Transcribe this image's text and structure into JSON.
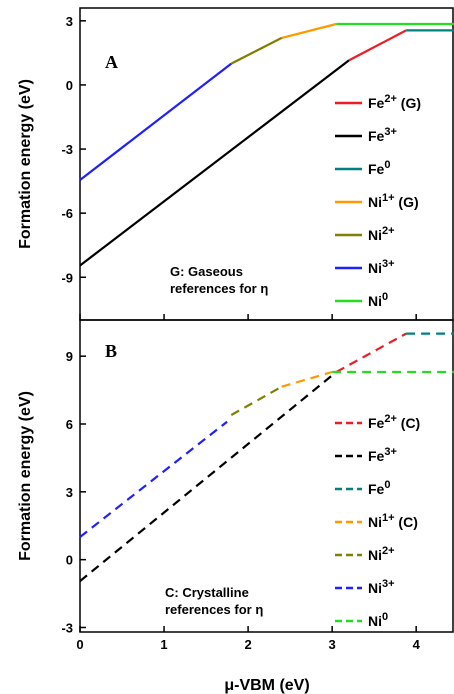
{
  "xlabel": "μ-VBM (eV)",
  "xticks": [
    "0",
    "1",
    "2",
    "3",
    "4"
  ],
  "chart_data": [
    {
      "type": "line",
      "panel": "A",
      "ylabel": "Formation energy (eV)",
      "xlim": [
        0,
        4.45
      ],
      "ylim": [
        -11,
        3.6
      ],
      "yticks": [
        -9,
        -6,
        -3,
        0,
        3
      ],
      "line_style": "solid",
      "annotation": [
        "G: Gaseous",
        "references for η"
      ],
      "legend_position": "right",
      "series": [
        {
          "name": "Fe2+ (G)",
          "label_main": "Fe",
          "label_sup": "2+",
          "label_suffix": "(G)",
          "color": "#ee1c24",
          "points": [
            [
              3.2,
              1.15
            ],
            [
              3.88,
              2.55
            ]
          ]
        },
        {
          "name": "Fe3+",
          "label_main": "Fe",
          "label_sup": "3+",
          "label_suffix": "",
          "color": "#000000",
          "points": [
            [
              0,
              -8.45
            ],
            [
              3.2,
              1.15
            ]
          ]
        },
        {
          "name": "Fe0",
          "label_main": "Fe",
          "label_sup": "0",
          "label_suffix": "",
          "color": "#008080",
          "points": [
            [
              3.88,
              2.55
            ],
            [
              4.45,
              2.55
            ]
          ]
        },
        {
          "name": "Ni1+ (G)",
          "label_main": "Ni",
          "label_sup": "1+",
          "label_suffix": "(G)",
          "color": "#ff9900",
          "points": [
            [
              2.4,
              2.2
            ],
            [
              3.05,
              2.85
            ]
          ]
        },
        {
          "name": "Ni2+",
          "label_main": "Ni",
          "label_sup": "2+",
          "label_suffix": "",
          "color": "#808000",
          "points": [
            [
              1.8,
              1.0
            ],
            [
              2.4,
              2.2
            ]
          ]
        },
        {
          "name": "Ni3+",
          "label_main": "Ni",
          "label_sup": "3+",
          "label_suffix": "",
          "color": "#1f1fff",
          "points": [
            [
              0,
              -4.45
            ],
            [
              1.8,
              1.0
            ]
          ]
        },
        {
          "name": "Ni0",
          "label_main": "Ni",
          "label_sup": "0",
          "label_suffix": "",
          "color": "#22dd22",
          "points": [
            [
              3.05,
              2.85
            ],
            [
              4.45,
              2.85
            ]
          ]
        }
      ]
    },
    {
      "type": "line",
      "panel": "B",
      "ylabel": "Formation energy (eV)",
      "xlim": [
        0,
        4.45
      ],
      "ylim": [
        -3.2,
        10.6
      ],
      "yticks": [
        -3,
        0,
        3,
        6,
        9
      ],
      "line_style": "dashed",
      "annotation": [
        "C: Crystalline",
        "references for η"
      ],
      "legend_position": "right",
      "series": [
        {
          "name": "Fe2+ (C)",
          "label_main": "Fe",
          "label_sup": "2+",
          "label_suffix": "(C)",
          "color": "#ee1c24",
          "points": [
            [
              3.05,
              8.3
            ],
            [
              3.88,
              10.0
            ]
          ]
        },
        {
          "name": "Fe3+",
          "label_main": "Fe",
          "label_sup": "3+",
          "label_suffix": "",
          "color": "#000000",
          "points": [
            [
              0,
              -0.95
            ],
            [
              3.05,
              8.3
            ]
          ]
        },
        {
          "name": "Fe0",
          "label_main": "Fe",
          "label_sup": "0",
          "label_suffix": "",
          "color": "#008080",
          "points": [
            [
              3.88,
              10.0
            ],
            [
              4.45,
              10.0
            ]
          ]
        },
        {
          "name": "Ni1+ (C)",
          "label_main": "Ni",
          "label_sup": "1+",
          "label_suffix": "(C)",
          "color": "#ff9900",
          "points": [
            [
              2.4,
              7.65
            ],
            [
              3.0,
              8.3
            ]
          ]
        },
        {
          "name": "Ni2+",
          "label_main": "Ni",
          "label_sup": "2+",
          "label_suffix": "",
          "color": "#808000",
          "points": [
            [
              1.8,
              6.4
            ],
            [
              2.4,
              7.65
            ]
          ]
        },
        {
          "name": "Ni3+",
          "label_main": "Ni",
          "label_sup": "3+",
          "label_suffix": "",
          "color": "#1f1fff",
          "points": [
            [
              0,
              1.0
            ],
            [
              1.75,
              6.1
            ]
          ]
        },
        {
          "name": "Ni0",
          "label_main": "Ni",
          "label_sup": "0",
          "label_suffix": "",
          "color": "#22dd22",
          "points": [
            [
              3.0,
              8.3
            ],
            [
              4.45,
              8.3
            ]
          ]
        }
      ]
    }
  ]
}
